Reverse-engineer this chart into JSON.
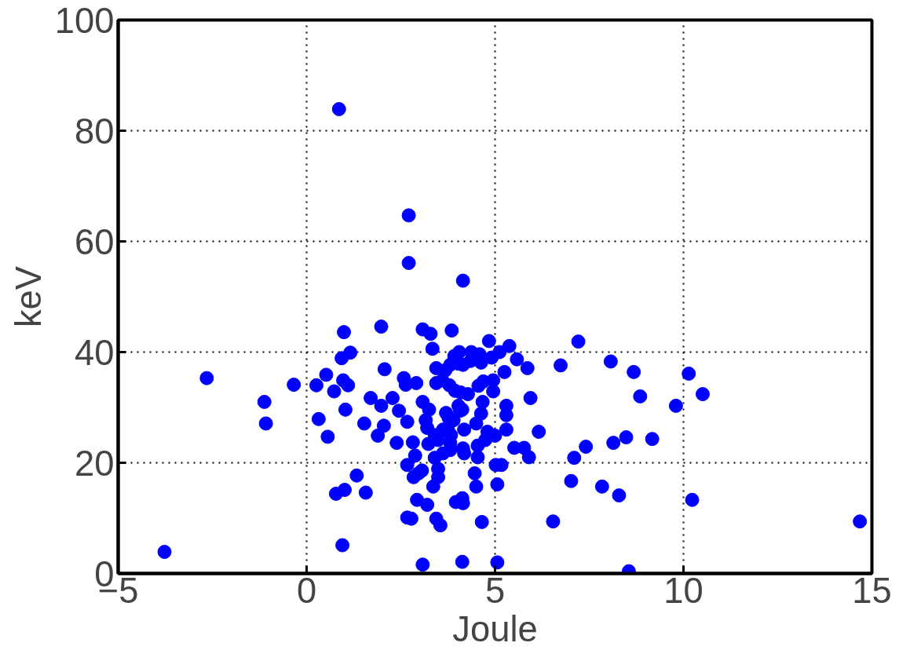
{
  "chart_data": {
    "type": "scatter",
    "xlabel": "Joule",
    "ylabel": "keV",
    "xlim": [
      -5,
      15
    ],
    "xticks": [
      {
        "value": -5,
        "label": "−5"
      },
      0,
      5,
      10,
      15
    ],
    "ylim": [
      0,
      100
    ],
    "yticks": [
      0,
      20,
      40,
      60,
      80,
      100
    ],
    "grid": true,
    "marker": "circle",
    "series": [
      {
        "color": "#0000ff",
        "x": [
          -3.77,
          -2.65,
          -1.12,
          -1.08,
          -0.34,
          0.26,
          0.32,
          0.52,
          0.56,
          0.78,
          0.73,
          0.86,
          0.93,
          0.99,
          0.97,
          1.03,
          1.01,
          0.95,
          1.1,
          1.16,
          1.33,
          1.53,
          1.57,
          1.7,
          1.89,
          1.98,
          1.98,
          2.07,
          2.05,
          2.28,
          2.39,
          2.45,
          2.58,
          2.63,
          2.67,
          2.71,
          2.71,
          2.67,
          2.67,
          2.78,
          2.91,
          2.88,
          2.82,
          2.84,
          2.93,
          3.08,
          3.08,
          3.06,
          3.08,
          2.97,
          3.16,
          3.2,
          3.2,
          3.23,
          3.25,
          3.29,
          3.34,
          3.36,
          3.4,
          3.4,
          3.44,
          3.44,
          3.49,
          3.44,
          3.49,
          3.49,
          3.55,
          3.6,
          3.62,
          3.62,
          3.68,
          3.7,
          3.75,
          3.77,
          3.79,
          3.81,
          3.85,
          3.81,
          3.81,
          3.83,
          3.9,
          3.92,
          3.94,
          3.96,
          4.03,
          4.03,
          4.05,
          4.07,
          4.09,
          4.13,
          4.15,
          4.15,
          4.15,
          4.18,
          4.18,
          4.13,
          4.15,
          4.13,
          4.28,
          4.35,
          4.37,
          4.46,
          4.5,
          4.5,
          4.56,
          4.54,
          4.54,
          4.59,
          4.63,
          4.63,
          4.65,
          4.67,
          4.69,
          4.74,
          4.8,
          4.84,
          4.91,
          4.95,
          4.95,
          5.0,
          5.02,
          5.06,
          5.06,
          5.17,
          5.12,
          5.25,
          5.3,
          5.3,
          5.3,
          5.38,
          5.51,
          5.58,
          5.77,
          5.86,
          5.9,
          5.94,
          6.16,
          6.54,
          6.74,
          7.02,
          7.1,
          7.21,
          7.41,
          7.84,
          8.07,
          8.14,
          8.29,
          8.48,
          8.55,
          8.68,
          8.85,
          9.17,
          9.8,
          10.14,
          10.23,
          10.51,
          14.68
        ],
        "values": [
          3.9,
          35.3,
          31,
          27.1,
          34.1,
          34,
          27.9,
          35.9,
          24.7,
          14.4,
          32.9,
          83.9,
          38.9,
          43.6,
          34.9,
          29.6,
          15.1,
          5.1,
          34,
          39.9,
          17.7,
          27.1,
          14.6,
          31.7,
          24.9,
          44.6,
          30.3,
          36.9,
          26.7,
          31.7,
          23.6,
          29.4,
          35.3,
          34.1,
          27.4,
          64.7,
          56.1,
          19.6,
          10.1,
          9.9,
          34.4,
          21.3,
          23.7,
          17.4,
          13.3,
          44.1,
          31,
          18.6,
          1.6,
          18.1,
          27.7,
          26.3,
          12.4,
          23.4,
          29.6,
          43.3,
          40.6,
          15.7,
          20.9,
          25,
          37.1,
          34.4,
          24.1,
          9.9,
          18.9,
          17.4,
          8.7,
          34.9,
          26,
          21.7,
          36.7,
          29,
          26,
          28.1,
          34,
          37.7,
          43.9,
          23.6,
          22.3,
          25,
          27.7,
          39.3,
          33,
          12.9,
          30.3,
          37.9,
          40,
          29.4,
          32.7,
          29.6,
          37.7,
          52.9,
          22.6,
          26,
          21.7,
          13.6,
          12.7,
          2.1,
          32.4,
          38.4,
          40,
          18.1,
          27.1,
          15.7,
          33.9,
          23.1,
          21,
          39.6,
          38.1,
          28.9,
          9.3,
          31,
          34.7,
          24.1,
          25.6,
          42,
          39,
          32.9,
          34.9,
          24.9,
          19.6,
          16.1,
          2,
          19.6,
          40,
          36.4,
          30.3,
          28.6,
          26,
          41.1,
          22.7,
          38.7,
          22.7,
          37.1,
          21,
          31.7,
          25.6,
          9.4,
          37.6,
          16.7,
          20.9,
          41.9,
          22.9,
          15.7,
          38.3,
          23.6,
          14.1,
          24.6,
          0.4,
          36.4,
          32,
          24.3,
          30.3,
          36.1,
          13.3,
          32.4,
          9.4
        ]
      }
    ]
  }
}
